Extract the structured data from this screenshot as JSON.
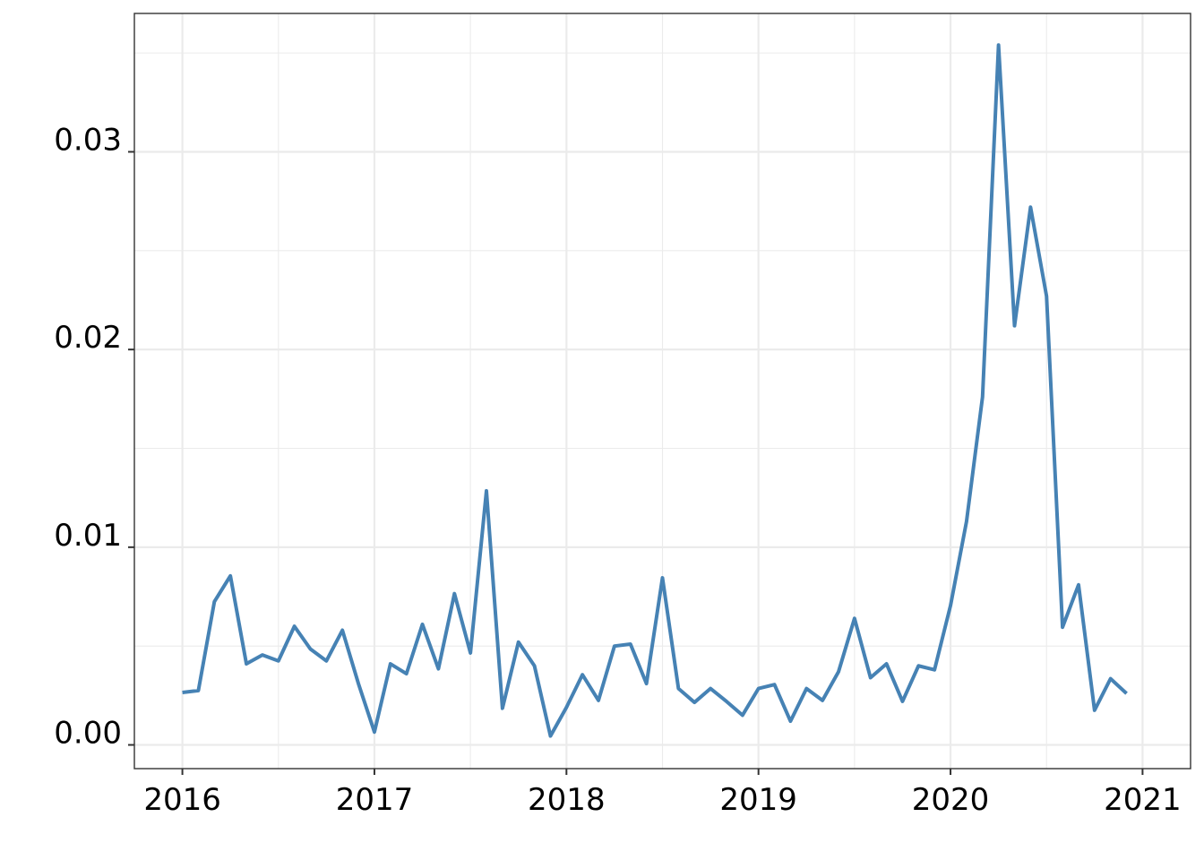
{
  "chart_data": {
    "type": "line",
    "title": "",
    "xlabel": "",
    "ylabel": "",
    "xlim": [
      2015.75,
      2021.25
    ],
    "ylim": [
      -0.0012,
      0.037
    ],
    "x_ticks": [
      2016,
      2017,
      2018,
      2019,
      2020,
      2021
    ],
    "x_tick_labels": [
      "2016",
      "2017",
      "2018",
      "2019",
      "2020",
      "2021"
    ],
    "y_ticks": [
      0.0,
      0.01,
      0.02,
      0.03
    ],
    "y_tick_labels": [
      "0.00",
      "0.01",
      "0.02",
      "0.03"
    ],
    "y_minor_ticks": [
      0.005,
      0.015,
      0.025,
      0.035
    ],
    "x_minor_ticks": [
      2016.5,
      2017.5,
      2018.5,
      2019.5,
      2020.5
    ],
    "grid": true,
    "line_color": "#4682B4",
    "series": [
      {
        "x": [
          2016.0,
          2016.0833,
          2016.1667,
          2016.25,
          2016.3333,
          2016.4167,
          2016.5,
          2016.5833,
          2016.6667,
          2016.75,
          2016.8333,
          2016.9167,
          2017.0,
          2017.0833,
          2017.1667,
          2017.25,
          2017.3333,
          2017.4167,
          2017.5,
          2017.5833,
          2017.6667,
          2017.75,
          2017.8333,
          2017.9167,
          2018.0,
          2018.0833,
          2018.1667,
          2018.25,
          2018.3333,
          2018.4167,
          2018.5,
          2018.5833,
          2018.6667,
          2018.75,
          2018.8333,
          2018.9167,
          2019.0,
          2019.0833,
          2019.1667,
          2019.25,
          2019.3333,
          2019.4167,
          2019.5,
          2019.5833,
          2019.6667,
          2019.75,
          2019.8333,
          2019.9167,
          2020.0,
          2020.0833,
          2020.1667,
          2020.25,
          2020.3333,
          2020.4167,
          2020.5,
          2020.5833,
          2020.6667,
          2020.75,
          2020.8333,
          2020.9167
        ],
        "values": [
          0.00265,
          0.00275,
          0.00725,
          0.00855,
          0.0041,
          0.00455,
          0.00425,
          0.006,
          0.00485,
          0.00425,
          0.0058,
          0.0031,
          0.00065,
          0.0041,
          0.0036,
          0.0061,
          0.00385,
          0.00765,
          0.00465,
          0.01285,
          0.00185,
          0.0052,
          0.004,
          0.00045,
          0.0019,
          0.00355,
          0.00225,
          0.005,
          0.0051,
          0.0031,
          0.00845,
          0.00285,
          0.00215,
          0.00285,
          0.0022,
          0.0015,
          0.00285,
          0.00305,
          0.0012,
          0.00285,
          0.00225,
          0.0037,
          0.0064,
          0.0034,
          0.0041,
          0.0022,
          0.004,
          0.0038,
          0.00705,
          0.0113,
          0.0176,
          0.0354,
          0.0212,
          0.0272,
          0.0227,
          0.00595,
          0.0081,
          0.00175,
          0.00335,
          0.0026
        ]
      }
    ]
  }
}
